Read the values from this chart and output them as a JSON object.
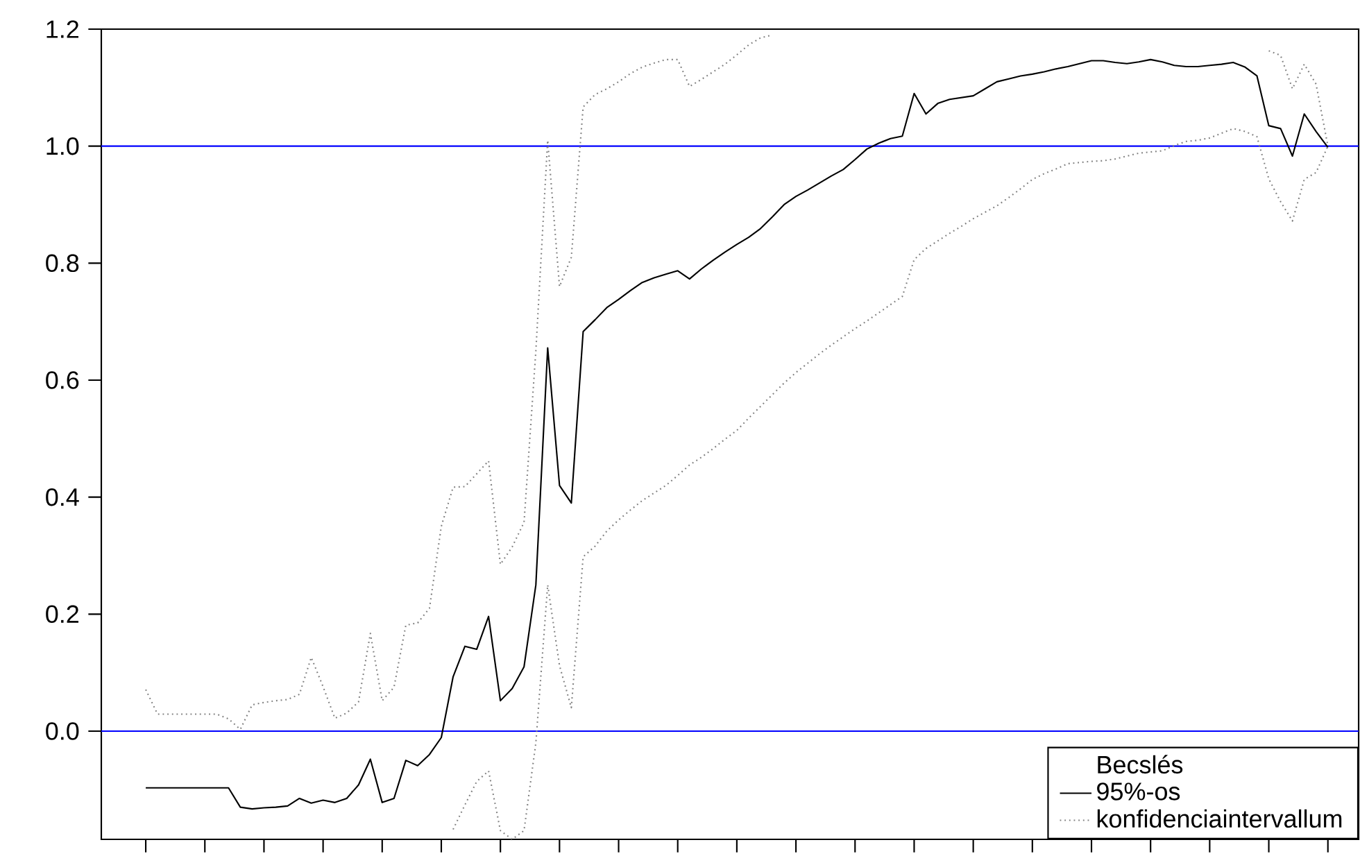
{
  "chart_data": {
    "type": "line",
    "categories": [
      null,
      null,
      null,
      null,
      null,
      null,
      null,
      null,
      null,
      null,
      null,
      null,
      null,
      null,
      null,
      null,
      null,
      null,
      null,
      null,
      null,
      null,
      null,
      null,
      null,
      null,
      null,
      null,
      null,
      null,
      null,
      null,
      null,
      null,
      null,
      null,
      null,
      null,
      null,
      null,
      null,
      null,
      null,
      null,
      null,
      null,
      null,
      null,
      null,
      null,
      null,
      null,
      null,
      null,
      null,
      null,
      null,
      null,
      null,
      null,
      null,
      null,
      null,
      null,
      null,
      null,
      null,
      null,
      null,
      null,
      null,
      null,
      null,
      null,
      null,
      null,
      null,
      null,
      null,
      null,
      null,
      null,
      null,
      null,
      null,
      null,
      null,
      null,
      null,
      null,
      null,
      null,
      null,
      null,
      null,
      null,
      null,
      null,
      null,
      null,
      null
    ],
    "ylim": [
      -0.185,
      1.2
    ],
    "yticks": [
      {
        "value": 0,
        "label": "0.0"
      },
      0.2,
      0.4,
      0.6,
      0.8,
      {
        "value": 1,
        "label": "1.0"
      },
      1.2
    ],
    "tick_labels": "y",
    "legend": "bottom right",
    "legend_title": "Becslés",
    "marker": "none",
    "ref_lines": [
      {
        "axis": "y",
        "value": 0,
        "color": "#0000ff"
      },
      {
        "axis": "y",
        "value": 1,
        "color": "#0000ff"
      }
    ],
    "series": [
      {
        "name": "95%-os",
        "color": "#000000",
        "line_style": "solid",
        "values": [
          -0.097,
          -0.097,
          -0.097,
          -0.097,
          -0.097,
          -0.097,
          -0.097,
          -0.097,
          -0.13,
          -0.133,
          -0.131,
          -0.13,
          -0.128,
          -0.115,
          -0.123,
          -0.118,
          -0.122,
          -0.115,
          -0.092,
          -0.048,
          -0.122,
          -0.115,
          -0.05,
          -0.059,
          -0.04,
          -0.011,
          0.093,
          0.145,
          0.14,
          0.196,
          0.052,
          0.073,
          0.11,
          0.25,
          0.655,
          0.42,
          0.39,
          0.683,
          0.703,
          0.724,
          0.738,
          0.753,
          0.767,
          0.775,
          0.781,
          0.787,
          0.773,
          0.79,
          0.805,
          0.819,
          0.832,
          0.844,
          0.859,
          0.879,
          0.9,
          0.914,
          0.925,
          0.937,
          0.949,
          0.96,
          0.977,
          0.995,
          1.005,
          1.013,
          1.017,
          1.09,
          1.055,
          1.073,
          1.08,
          1.083,
          1.086,
          1.098,
          1.11,
          1.115,
          1.12,
          1.123,
          1.127,
          1.132,
          1.136,
          1.141,
          1.146,
          1.146,
          1.143,
          1.141,
          1.144,
          1.148,
          1.144,
          1.138,
          1.136,
          1.136,
          1.138,
          1.14,
          1.143,
          1.135,
          1.12,
          1.035,
          1.03,
          0.983,
          1.055,
          1.025,
          0.998
        ]
      },
      {
        "name": "konfidenciaintervallum",
        "color": "#808080",
        "line_style": "dotted",
        "values": [
          0.071,
          0.029,
          0.029,
          0.029,
          0.029,
          0.029,
          0.029,
          0.021,
          0.003,
          0.045,
          0.049,
          0.052,
          0.054,
          0.063,
          0.126,
          0.076,
          0.022,
          0.031,
          0.05,
          0.167,
          0.052,
          0.075,
          0.181,
          0.185,
          0.21,
          0.35,
          0.417,
          0.418,
          0.44,
          0.462,
          0.285,
          0.315,
          0.357,
          0.65,
          1.01,
          0.76,
          0.81,
          1.067,
          1.088,
          1.098,
          1.11,
          1.124,
          1.135,
          1.142,
          1.148,
          1.148,
          1.102,
          1.114,
          1.127,
          1.14,
          1.156,
          1.173,
          1.185,
          1.19,
          null,
          null,
          null,
          null,
          null,
          null,
          null,
          null,
          null,
          null,
          null,
          null,
          null,
          null,
          null,
          null,
          null,
          null,
          null,
          null,
          null,
          null,
          null,
          null,
          null,
          null,
          null,
          null,
          null,
          null,
          null,
          null,
          null,
          null,
          null,
          null,
          null,
          null,
          null,
          null,
          null,
          1.163,
          1.155,
          1.098,
          1.14,
          1.106,
          1.0
        ]
      },
      {
        "color": "#808080",
        "line_style": "dotted",
        "values": [
          null,
          null,
          null,
          null,
          null,
          null,
          null,
          null,
          null,
          null,
          null,
          null,
          null,
          null,
          null,
          null,
          null,
          null,
          null,
          null,
          null,
          null,
          null,
          null,
          null,
          null,
          -0.168,
          -0.126,
          -0.086,
          -0.068,
          -0.17,
          -0.185,
          -0.17,
          -0.02,
          0.25,
          0.112,
          0.04,
          0.298,
          0.316,
          0.342,
          0.361,
          0.378,
          0.394,
          0.407,
          0.42,
          0.437,
          0.455,
          0.468,
          0.483,
          0.499,
          0.514,
          0.535,
          0.555,
          0.575,
          0.595,
          0.613,
          0.629,
          0.645,
          0.66,
          0.674,
          0.688,
          0.701,
          0.715,
          0.729,
          0.743,
          0.806,
          0.825,
          0.838,
          0.851,
          0.863,
          0.876,
          0.887,
          0.898,
          0.912,
          0.927,
          0.943,
          0.953,
          0.961,
          0.97,
          0.972,
          0.974,
          0.975,
          0.978,
          0.983,
          0.988,
          0.99,
          0.992,
          1.001,
          1.008,
          1.01,
          1.014,
          1.022,
          1.03,
          1.025,
          1.016,
          0.944,
          0.905,
          0.872,
          0.943,
          0.955,
          1.0
        ]
      }
    ]
  }
}
